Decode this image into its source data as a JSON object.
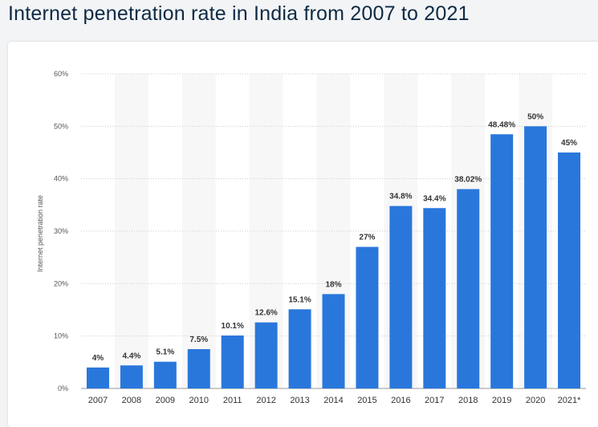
{
  "page": {
    "title": "Internet penetration rate in India from 2007 to 2021"
  },
  "chart_data": {
    "type": "bar",
    "title": "Internet penetration rate in India from 2007 to 2021",
    "ylabel": "Internet penetration rate",
    "xlabel": "",
    "categories": [
      "2007",
      "2008",
      "2009",
      "2010",
      "2011",
      "2012",
      "2013",
      "2014",
      "2015",
      "2016",
      "2017",
      "2018",
      "2019",
      "2020",
      "2021*"
    ],
    "values": [
      4,
      4.4,
      5.1,
      7.5,
      10.1,
      12.6,
      15.1,
      18,
      27,
      34.8,
      34.4,
      38.02,
      48.48,
      50,
      45
    ],
    "data_labels": [
      "4%",
      "4.4%",
      "5.1%",
      "7.5%",
      "10.1%",
      "12.6%",
      "15.1%",
      "18%",
      "27%",
      "34.8%",
      "34.4%",
      "38.02%",
      "48.48%",
      "50%",
      "45%"
    ],
    "ylim": [
      0,
      60
    ],
    "yticks": [
      0,
      10,
      20,
      30,
      40,
      50,
      60
    ],
    "ytick_labels": [
      "0%",
      "10%",
      "20%",
      "30%",
      "40%",
      "50%",
      "60%"
    ],
    "grid": true,
    "colors": {
      "bar": "#2a77dc",
      "alt_band": "#f7f7f7",
      "grid": "#cccccc"
    }
  }
}
